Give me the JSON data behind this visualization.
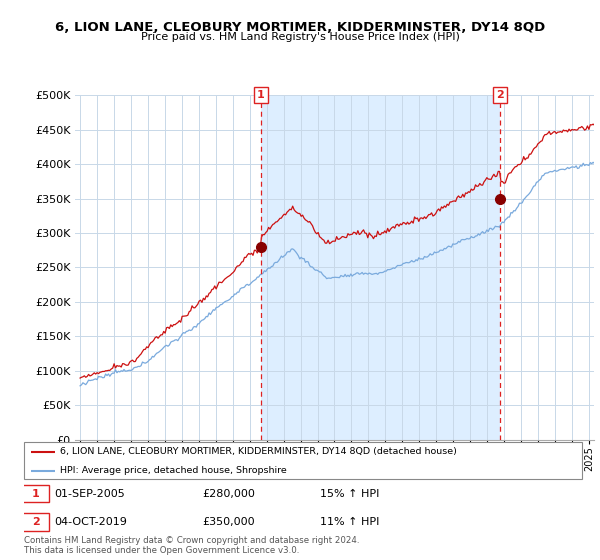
{
  "title": "6, LION LANE, CLEOBURY MORTIMER, KIDDERMINSTER, DY14 8QD",
  "subtitle": "Price paid vs. HM Land Registry's House Price Index (HPI)",
  "legend_line1": "6, LION LANE, CLEOBURY MORTIMER, KIDDERMINSTER, DY14 8QD (detached house)",
  "legend_line2": "HPI: Average price, detached house, Shropshire",
  "footnote1": "Contains HM Land Registry data © Crown copyright and database right 2024.",
  "footnote2": "This data is licensed under the Open Government Licence v3.0.",
  "annotation1": {
    "label": "1",
    "date_str": "01-SEP-2005",
    "price": 280000,
    "hpi_pct": "15%",
    "x_year": 2005.67
  },
  "annotation2": {
    "label": "2",
    "date_str": "04-OCT-2019",
    "price": 350000,
    "hpi_pct": "11%",
    "x_year": 2019.75
  },
  "ylim": [
    0,
    500000
  ],
  "xlim_start": 1994.7,
  "xlim_end": 2025.3,
  "background_color": "#ffffff",
  "grid_color": "#c8d8e8",
  "red_color": "#cc1111",
  "blue_color": "#7aaadd",
  "shade_color": "#ddeeff",
  "vline_color": "#dd2222"
}
